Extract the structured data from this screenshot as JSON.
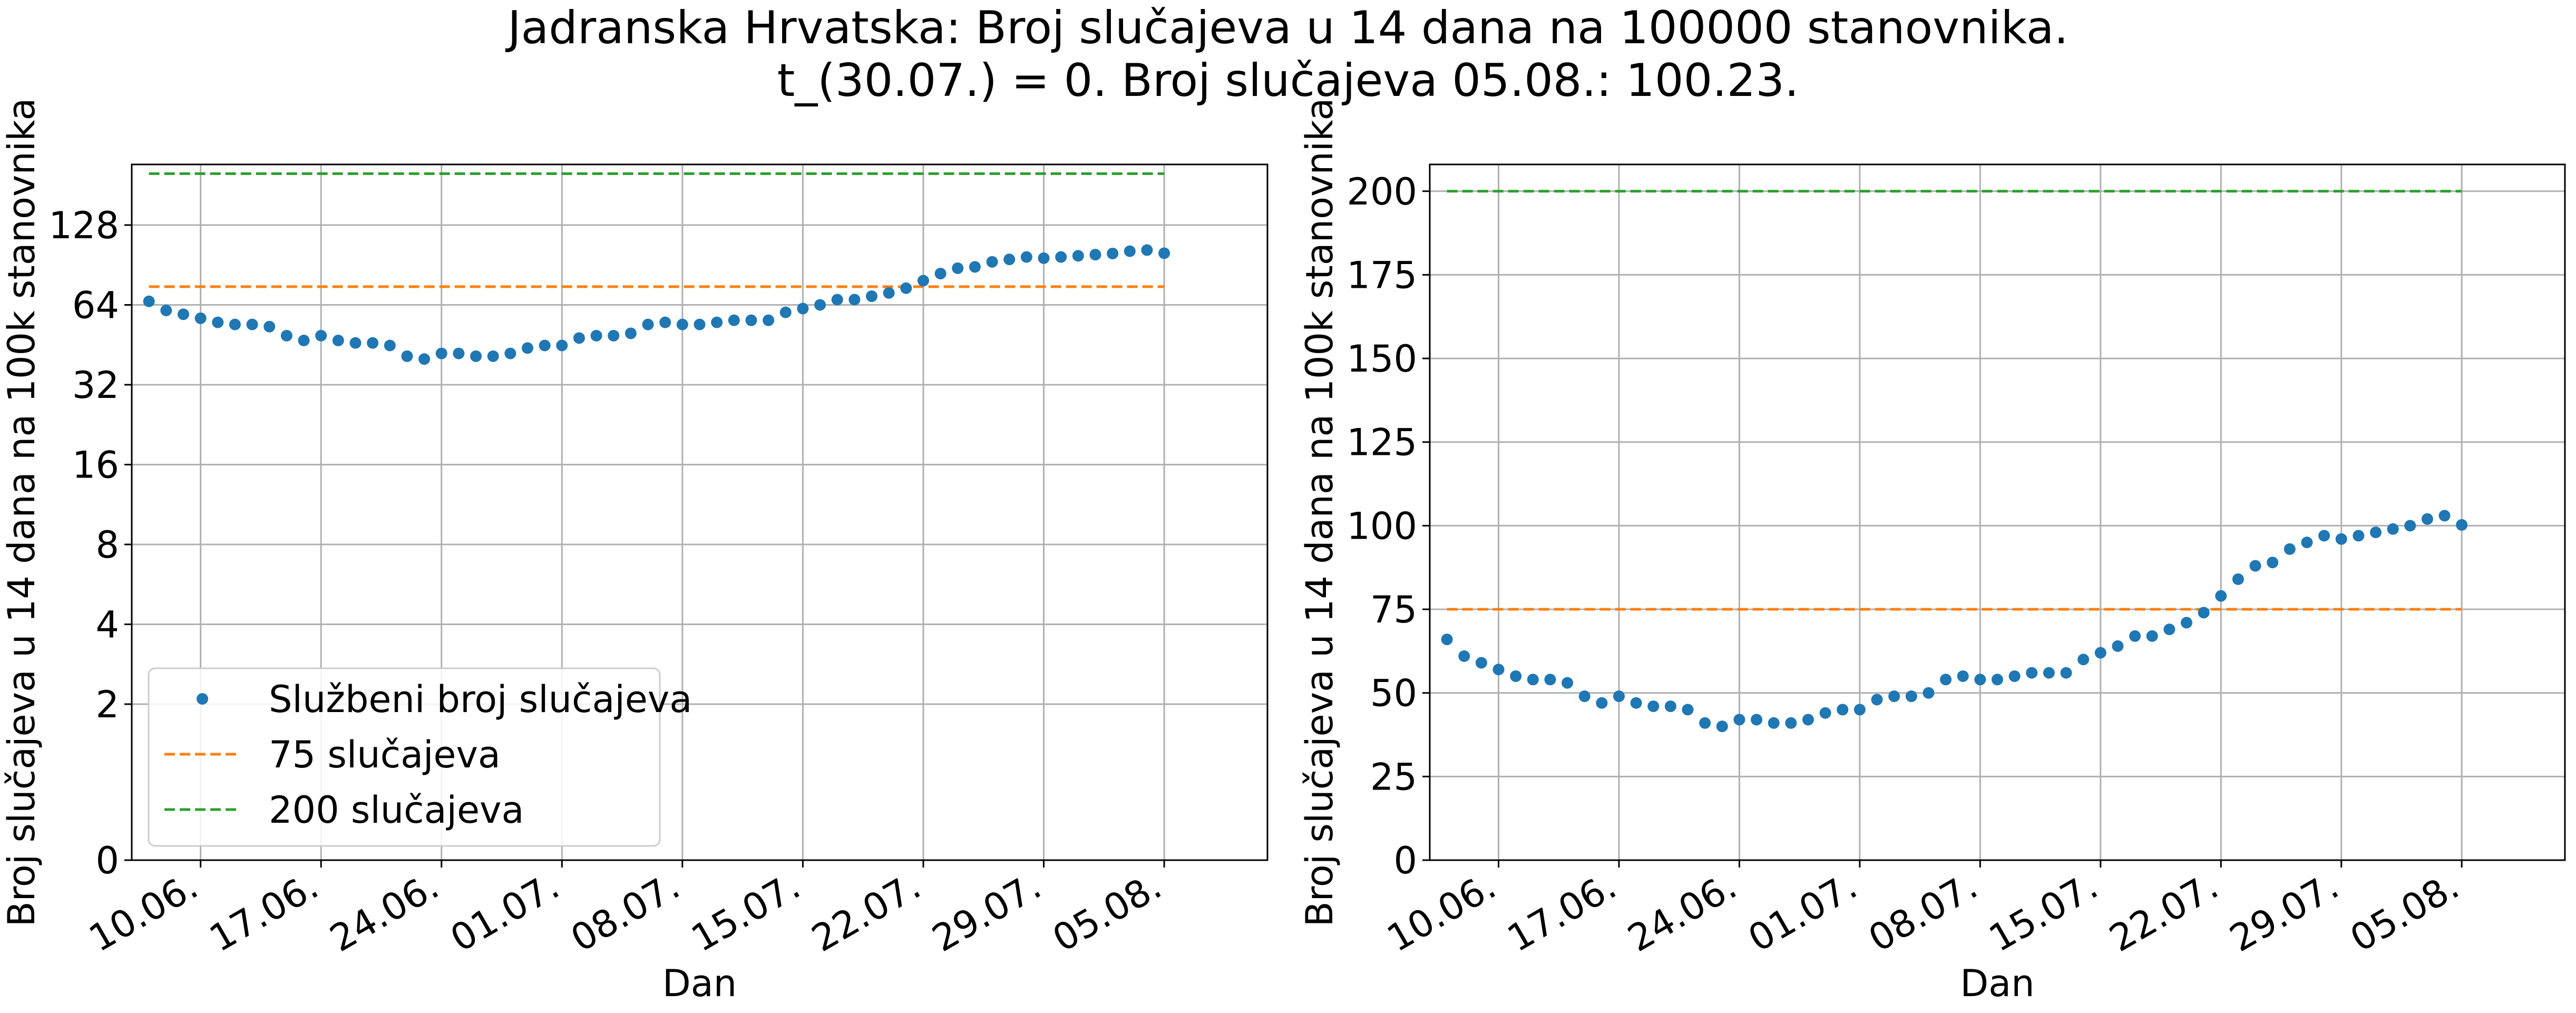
{
  "figure": {
    "title_line1": "Jadranska Hrvatska: Broj slučajeva u 14 dana na 100000 stanovnika.",
    "title_line2": "t_(30.07.) = 0. Broj slučajeva 05.08.: 100.23."
  },
  "colors": {
    "points": "#1f77b4",
    "threshold_75": "#ff7f0e",
    "threshold_200": "#2ca02c",
    "grid": "#b0b0b0",
    "axes": "#000000",
    "background": "#ffffff"
  },
  "legend": {
    "points_label": "Službeni broj slučajeva",
    "line75_label": "75 slučajeva",
    "line200_label": "200 slučajeva",
    "placement": "lower-left (left panel only)"
  },
  "chart_data": [
    {
      "type": "scatter",
      "panel": "left",
      "y_scale": "log2",
      "xlabel": "Dan",
      "ylabel": "Broj slučajeva u 14 dana na 100k stanovnika",
      "x_tick_labels": [
        "10.06.",
        "17.06.",
        "24.06.",
        "01.07.",
        "08.07.",
        "15.07.",
        "22.07.",
        "29.07.",
        "05.08."
      ],
      "x_range": [
        "06.06.",
        "11.08."
      ],
      "y_tick_labels": [
        "0",
        "2",
        "4",
        "8",
        "16",
        "32",
        "64",
        "128"
      ],
      "grid": true,
      "series": [
        {
          "name": "Službeni broj slučajeva",
          "style": "points",
          "x": [
            "07.06.",
            "08.06.",
            "09.06.",
            "10.06.",
            "11.06.",
            "12.06.",
            "13.06.",
            "14.06.",
            "15.06.",
            "16.06.",
            "17.06.",
            "18.06.",
            "19.06.",
            "20.06.",
            "21.06.",
            "22.06.",
            "23.06.",
            "24.06.",
            "25.06.",
            "26.06.",
            "27.06.",
            "28.06.",
            "29.06.",
            "30.06.",
            "01.07.",
            "02.07.",
            "03.07.",
            "04.07.",
            "05.07.",
            "06.07.",
            "07.07.",
            "08.07.",
            "09.07.",
            "10.07.",
            "11.07.",
            "12.07.",
            "13.07.",
            "14.07.",
            "15.07.",
            "16.07.",
            "17.07.",
            "18.07.",
            "19.07.",
            "20.07.",
            "21.07.",
            "22.07.",
            "23.07.",
            "24.07.",
            "25.07.",
            "26.07.",
            "27.07.",
            "28.07.",
            "29.07.",
            "30.07.",
            "31.07.",
            "01.08.",
            "02.08.",
            "03.08.",
            "04.08.",
            "05.08."
          ],
          "y": [
            66,
            61,
            59,
            57,
            55,
            54,
            54,
            53,
            49,
            47,
            49,
            47,
            46,
            46,
            45,
            41,
            40,
            42,
            42,
            41,
            41,
            42,
            44,
            45,
            45,
            48,
            49,
            49,
            50,
            54,
            55,
            54,
            54,
            55,
            56,
            56,
            56,
            60,
            62,
            64,
            67,
            67,
            69,
            71,
            74,
            79,
            84,
            88,
            89,
            93,
            95,
            97,
            96,
            97,
            98,
            99,
            100,
            102,
            103,
            100.23
          ]
        },
        {
          "name": "75 slučajeva",
          "style": "dashed",
          "x": [
            "07.06.",
            "05.08."
          ],
          "y": [
            75,
            75
          ]
        },
        {
          "name": "200 slučajeva",
          "style": "dashed",
          "x": [
            "07.06.",
            "05.08."
          ],
          "y": [
            200,
            200
          ]
        }
      ]
    },
    {
      "type": "scatter",
      "panel": "right",
      "y_scale": "linear",
      "xlabel": "Dan",
      "ylabel": "Broj slučajeva u 14 dana na 100k stanovnika",
      "x_tick_labels": [
        "10.06.",
        "17.06.",
        "24.06.",
        "01.07.",
        "08.07.",
        "15.07.",
        "22.07.",
        "29.07.",
        "05.08."
      ],
      "x_range": [
        "06.06.",
        "11.08."
      ],
      "y_tick_labels": [
        "0",
        "25",
        "50",
        "75",
        "100",
        "125",
        "150",
        "175",
        "200"
      ],
      "ylim": [
        0,
        208
      ],
      "grid": true,
      "series": [
        {
          "name": "Službeni broj slučajeva",
          "style": "points",
          "x": [
            "07.06.",
            "08.06.",
            "09.06.",
            "10.06.",
            "11.06.",
            "12.06.",
            "13.06.",
            "14.06.",
            "15.06.",
            "16.06.",
            "17.06.",
            "18.06.",
            "19.06.",
            "20.06.",
            "21.06.",
            "22.06.",
            "23.06.",
            "24.06.",
            "25.06.",
            "26.06.",
            "27.06.",
            "28.06.",
            "29.06.",
            "30.06.",
            "01.07.",
            "02.07.",
            "03.07.",
            "04.07.",
            "05.07.",
            "06.07.",
            "07.07.",
            "08.07.",
            "09.07.",
            "10.07.",
            "11.07.",
            "12.07.",
            "13.07.",
            "14.07.",
            "15.07.",
            "16.07.",
            "17.07.",
            "18.07.",
            "19.07.",
            "20.07.",
            "21.07.",
            "22.07.",
            "23.07.",
            "24.07.",
            "25.07.",
            "26.07.",
            "27.07.",
            "28.07.",
            "29.07.",
            "30.07.",
            "31.07.",
            "01.08.",
            "02.08.",
            "03.08.",
            "04.08.",
            "05.08."
          ],
          "y": [
            66,
            61,
            59,
            57,
            55,
            54,
            54,
            53,
            49,
            47,
            49,
            47,
            46,
            46,
            45,
            41,
            40,
            42,
            42,
            41,
            41,
            42,
            44,
            45,
            45,
            48,
            49,
            49,
            50,
            54,
            55,
            54,
            54,
            55,
            56,
            56,
            56,
            60,
            62,
            64,
            67,
            67,
            69,
            71,
            74,
            79,
            84,
            88,
            89,
            93,
            95,
            97,
            96,
            97,
            98,
            99,
            100,
            102,
            103,
            100.23
          ]
        },
        {
          "name": "75 slučajeva",
          "style": "dashed",
          "x": [
            "07.06.",
            "05.08."
          ],
          "y": [
            75,
            75
          ]
        },
        {
          "name": "200 slučajeva",
          "style": "dashed",
          "x": [
            "07.06.",
            "05.08."
          ],
          "y": [
            200,
            200
          ]
        }
      ]
    }
  ]
}
